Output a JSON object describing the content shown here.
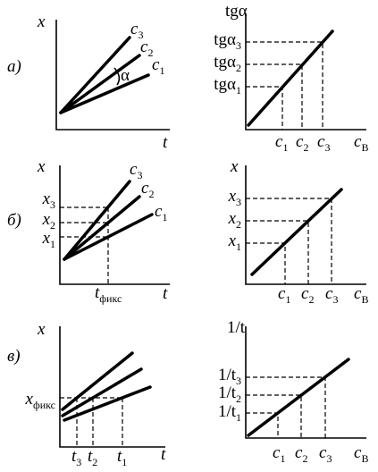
{
  "panels": [
    {
      "label": "а)",
      "left": {
        "y_axis": "x",
        "x_axis": "t",
        "angle": "α",
        "lines": [
          {
            "base": "c",
            "sub": "3"
          },
          {
            "base": "c",
            "sub": "2"
          },
          {
            "base": "c",
            "sub": "1"
          }
        ]
      },
      "right": {
        "y_axis": "tgα",
        "y_labels": [
          {
            "base": "tgα",
            "sub": "3"
          },
          {
            "base": "tgα",
            "sub": "2"
          },
          {
            "base": "tgα",
            "sub": "1"
          }
        ],
        "x_labels": [
          {
            "base": "c",
            "sub": "1"
          },
          {
            "base": "c",
            "sub": "2"
          },
          {
            "base": "c",
            "sub": "3"
          }
        ],
        "x_axis": {
          "base": "c",
          "sub": "В"
        }
      }
    },
    {
      "label": "б)",
      "left": {
        "y_axis": "x",
        "x_axis": "t",
        "lines": [
          {
            "base": "c",
            "sub": "3"
          },
          {
            "base": "c",
            "sub": "2"
          },
          {
            "base": "c",
            "sub": "1"
          }
        ],
        "y_labels": [
          {
            "base": "x",
            "sub": "3"
          },
          {
            "base": "x",
            "sub": "2"
          },
          {
            "base": "x",
            "sub": "1"
          }
        ],
        "x_label": {
          "base": "t",
          "sub": "фикс"
        }
      },
      "right": {
        "y_axis": "x",
        "y_labels": [
          {
            "base": "x",
            "sub": "3"
          },
          {
            "base": "x",
            "sub": "2"
          },
          {
            "base": "x",
            "sub": "1"
          }
        ],
        "x_labels": [
          {
            "base": "c",
            "sub": "1"
          },
          {
            "base": "c",
            "sub": "2"
          },
          {
            "base": "c",
            "sub": "3"
          }
        ],
        "x_axis": {
          "base": "c",
          "sub": "В"
        }
      }
    },
    {
      "label": "в)",
      "left": {
        "y_axis": "x",
        "x_axis": "t",
        "y_label": {
          "base": "x",
          "sub": "фикс"
        },
        "x_labels": [
          {
            "base": "t",
            "sub": "3"
          },
          {
            "base": "t",
            "sub": "2"
          },
          {
            "base": "t",
            "sub": "1"
          }
        ]
      },
      "right": {
        "y_axis": "1/t",
        "y_labels": [
          {
            "base": "1/t",
            "sub": "3"
          },
          {
            "base": "1/t",
            "sub": "2"
          },
          {
            "base": "1/t",
            "sub": "1"
          }
        ],
        "x_labels": [
          {
            "base": "c",
            "sub": "1"
          },
          {
            "base": "c",
            "sub": "2"
          },
          {
            "base": "c",
            "sub": "3"
          }
        ],
        "x_axis": {
          "base": "c",
          "sub": "В"
        }
      }
    }
  ]
}
